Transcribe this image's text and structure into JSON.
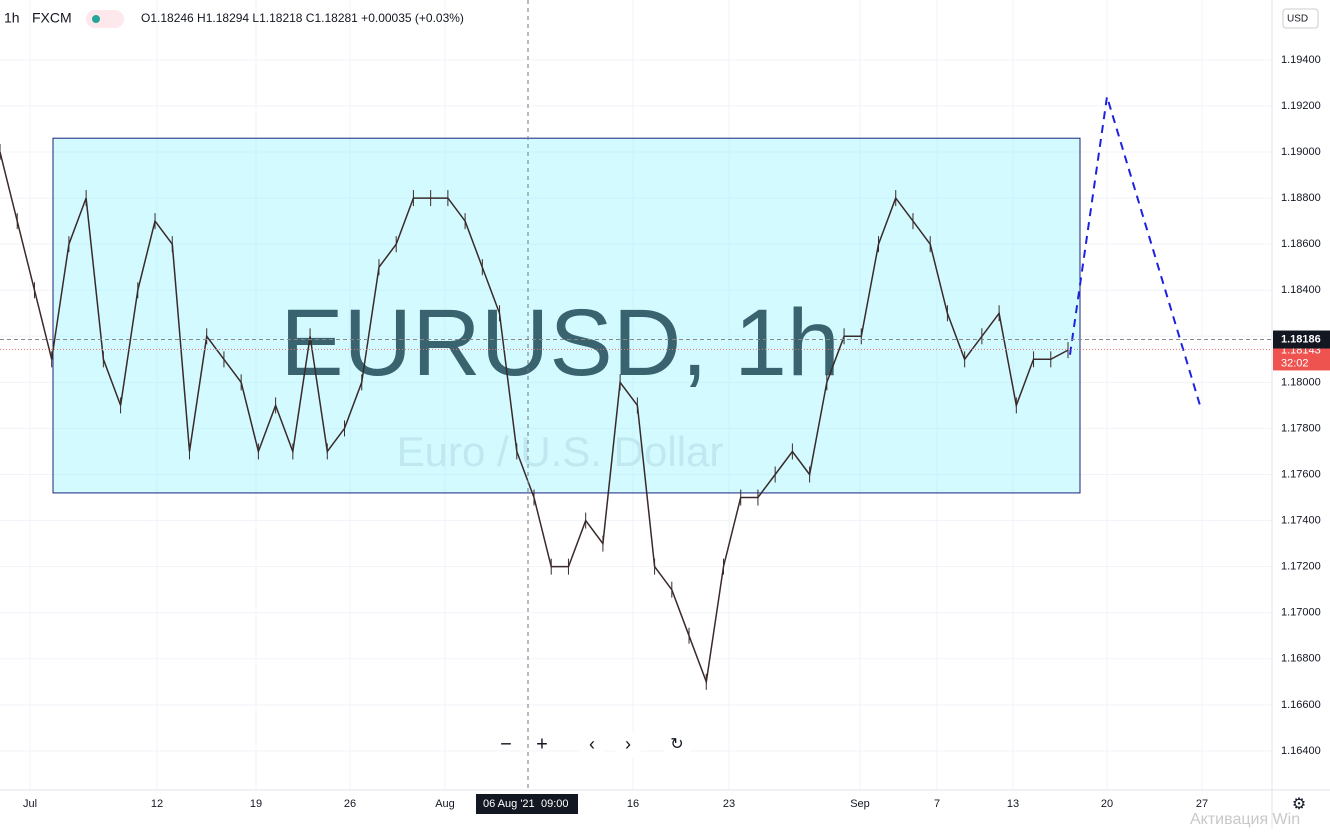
{
  "header": {
    "interval": "1h",
    "exchange": "FXCM",
    "ohlc": "O1.18246 H1.18294 L1.18218 C1.18281 +0.00035 (+0.03%)"
  },
  "currency": "USD",
  "watermark": {
    "symbol": "EURUSD, 1h",
    "description": "Euro / U.S. Dollar"
  },
  "chart": {
    "ylim": [
      1.16061,
      1.1966
    ],
    "yticks": [
      {
        "value": 1.194,
        "label": "1.19400"
      },
      {
        "value": 1.192,
        "label": "1.19200"
      },
      {
        "value": 1.19,
        "label": "1.19000"
      },
      {
        "value": 1.188,
        "label": "1.18800"
      },
      {
        "value": 1.186,
        "label": "1.18600"
      },
      {
        "value": 1.184,
        "label": "1.18400"
      },
      {
        "value": 1.182,
        "label": "1.18200"
      },
      {
        "value": 1.18,
        "label": "1.18000"
      },
      {
        "value": 1.178,
        "label": "1.17800"
      },
      {
        "value": 1.176,
        "label": "1.17600"
      },
      {
        "value": 1.174,
        "label": "1.17400"
      },
      {
        "value": 1.172,
        "label": "1.17200"
      },
      {
        "value": 1.17,
        "label": "1.17000"
      },
      {
        "value": 1.168,
        "label": "1.16800"
      },
      {
        "value": 1.166,
        "label": "1.16600"
      },
      {
        "value": 1.164,
        "label": "1.16400"
      }
    ],
    "time_labels": [
      "Jul",
      "12",
      "19",
      "26",
      "Aug",
      "16",
      "23",
      "Sep",
      "7",
      "13",
      "20",
      "27"
    ],
    "closes": [
      1.19,
      1.187,
      1.184,
      1.181,
      1.186,
      1.188,
      1.181,
      1.179,
      1.184,
      1.187,
      1.186,
      1.177,
      1.182,
      1.181,
      1.18,
      1.177,
      1.179,
      1.177,
      1.182,
      1.177,
      1.178,
      1.18,
      1.185,
      1.186,
      1.188,
      1.188,
      1.188,
      1.187,
      1.185,
      1.183,
      1.177,
      1.175,
      1.172,
      1.172,
      1.174,
      1.173,
      1.18,
      1.179,
      1.172,
      1.171,
      1.169,
      1.167,
      1.172,
      1.175,
      1.175,
      1.176,
      1.177,
      1.176,
      1.18,
      1.182,
      1.182,
      1.186,
      1.188,
      1.187,
      1.186,
      1.183,
      1.181,
      1.182,
      1.183,
      1.179,
      1.181,
      1.181,
      1.1814
    ],
    "range_box": {
      "top": 1.1906,
      "bottom": 1.1752
    },
    "forecast": [
      1.1812,
      1.1924,
      1.179
    ],
    "last_price": {
      "value": 1.18186,
      "label": "1.18186"
    },
    "bid_price": {
      "value": 1.18143,
      "label": "1.18143"
    },
    "countdown": "32:02",
    "crosshair": {
      "date": "06 Aug '21",
      "time": "09:00"
    }
  },
  "overlay": "Активация Win"
}
